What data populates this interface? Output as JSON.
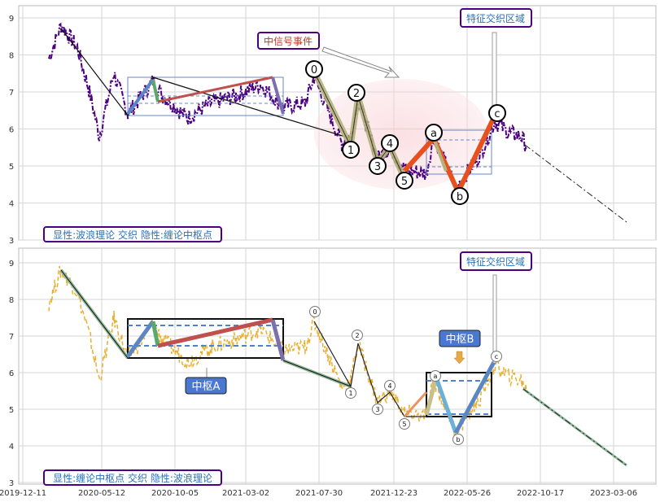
{
  "chart_data": [
    {
      "type": "line",
      "ylim": [
        3,
        9.3
      ],
      "yticks": [
        3,
        4,
        5,
        6,
        7,
        8,
        9
      ],
      "xticks": [
        "2019-12-11",
        "2020-05-12",
        "2020-10-05",
        "2021-03-02",
        "2021-07-30",
        "2021-12-23",
        "2022-05-26",
        "2022-10-17",
        "2023-03-06"
      ],
      "grid": true,
      "price_color": "#4b0082",
      "texts": {
        "legend_box": "显性:波浪理论 交织 隐性:缠论中枢点",
        "event_label": "中信号事件",
        "zone_label": "特征交织区域"
      },
      "wave_labels": [
        "0",
        "1",
        "2",
        "3",
        "4",
        "5",
        "a",
        "b",
        "c"
      ],
      "wave_points": [
        {
          "label": "0",
          "date": "2021-07-10",
          "value": 7.4
        },
        {
          "label": "1",
          "date": "2021-09-25",
          "value": 5.6
        },
        {
          "label": "2",
          "date": "2021-10-08",
          "value": 6.8
        },
        {
          "label": "3",
          "date": "2021-11-12",
          "value": 5.2
        },
        {
          "label": "4",
          "date": "2021-12-05",
          "value": 5.5
        },
        {
          "label": "5",
          "date": "2022-01-05",
          "value": 4.8
        },
        {
          "label": "a",
          "date": "2022-02-25",
          "value": 5.7
        },
        {
          "label": "b",
          "date": "2022-03-22",
          "value": 4.4
        },
        {
          "label": "c",
          "date": "2022-06-01",
          "value": 6.2
        }
      ]
    },
    {
      "type": "line",
      "ylim": [
        3,
        9.3
      ],
      "yticks": [
        3,
        4,
        5,
        6,
        7,
        8,
        9
      ],
      "xticks": [
        "2019-12-11",
        "2020-05-12",
        "2020-10-05",
        "2021-03-02",
        "2021-07-30",
        "2021-12-23",
        "2022-05-26",
        "2022-10-17",
        "2023-03-06"
      ],
      "grid": true,
      "price_color": "#e8b030",
      "texts": {
        "legend_box": "显性:缠论中枢点 交织 隐性:波浪理论",
        "zone_label": "特征交织区域",
        "pivot_a": "中枢A",
        "pivot_b": "中枢B"
      },
      "wave_labels": [
        "0",
        "1",
        "2",
        "3",
        "4",
        "5",
        "a",
        "b",
        "c"
      ]
    }
  ]
}
